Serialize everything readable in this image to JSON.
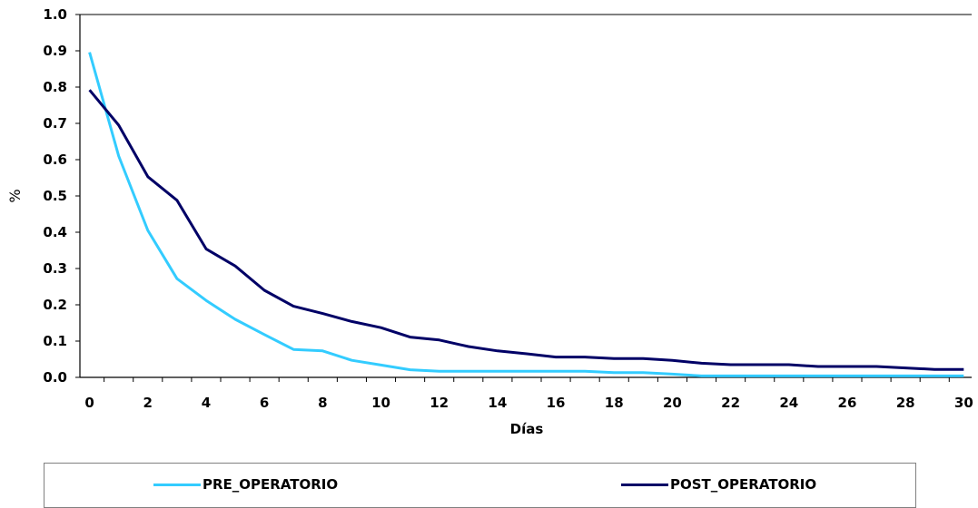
{
  "chart_data": {
    "type": "line",
    "title": "",
    "xlabel": "Días",
    "ylabel": "%",
    "xlim": [
      0,
      30.6
    ],
    "ylim": [
      0,
      1.0
    ],
    "x_ticks": [
      "0",
      "2",
      "4",
      "6",
      "8",
      "10",
      "12",
      "14",
      "16",
      "18",
      "20",
      "22",
      "24",
      "26",
      "28",
      "30"
    ],
    "y_ticks": [
      "0.0",
      "0.1",
      "0.2",
      "0.3",
      "0.4",
      "0.5",
      "0.6",
      "0.7",
      "0.8",
      "0.9",
      "1.0"
    ],
    "grid": false,
    "legend_position": "bottom",
    "x": [
      0.33,
      1.33,
      2.33,
      3.33,
      4.33,
      5.33,
      6.33,
      7.33,
      8.33,
      9.33,
      10.33,
      11.33,
      12.33,
      13.33,
      14.33,
      15.33,
      16.33,
      17.33,
      18.33,
      19.33,
      20.33,
      21.33,
      22.33,
      23.33,
      24.33,
      25.33,
      26.33,
      27.33,
      28.33,
      29.33,
      30.33
    ],
    "series": [
      {
        "name": "PRE_OPERATORIO",
        "color": "#33CCFF",
        "values": [
          0.896,
          0.61,
          0.405,
          0.272,
          0.212,
          0.16,
          0.118,
          0.077,
          0.073,
          0.047,
          0.034,
          0.021,
          0.017,
          0.017,
          0.017,
          0.017,
          0.017,
          0.017,
          0.013,
          0.013,
          0.009,
          0.004,
          0.004,
          0.004,
          0.004,
          0.004,
          0.004,
          0.004,
          0.004,
          0.004,
          0.004
        ]
      },
      {
        "name": "POST_OPERATORIO",
        "color": "#000066",
        "values": [
          0.792,
          0.695,
          0.553,
          0.488,
          0.354,
          0.307,
          0.24,
          0.196,
          0.176,
          0.154,
          0.137,
          0.111,
          0.103,
          0.085,
          0.073,
          0.065,
          0.056,
          0.056,
          0.052,
          0.052,
          0.047,
          0.039,
          0.035,
          0.035,
          0.035,
          0.03,
          0.03,
          0.03,
          0.026,
          0.022,
          0.022
        ]
      }
    ]
  }
}
